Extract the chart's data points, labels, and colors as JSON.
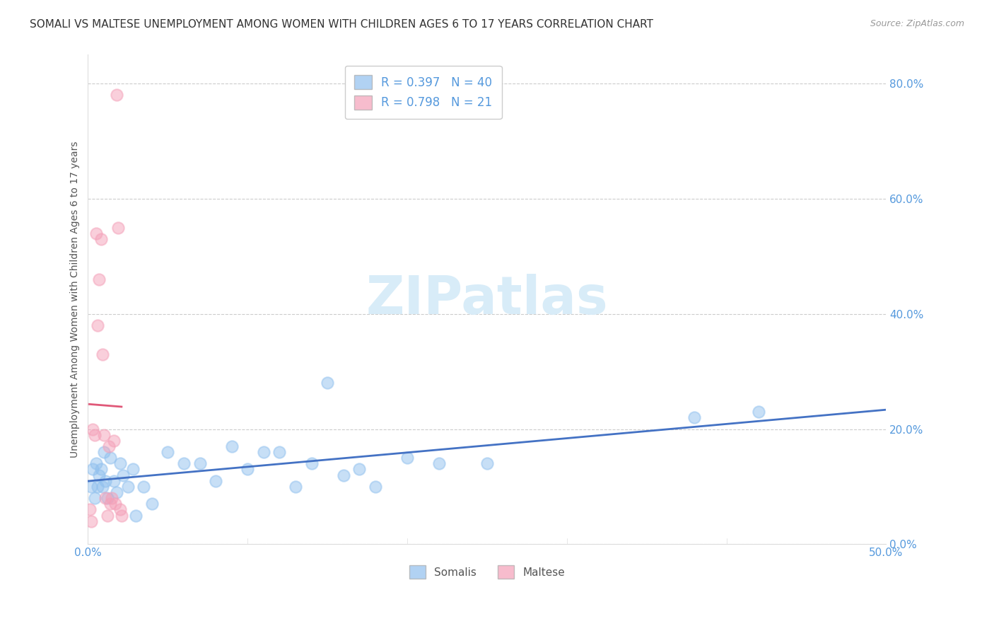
{
  "title": "SOMALI VS MALTESE UNEMPLOYMENT AMONG WOMEN WITH CHILDREN AGES 6 TO 17 YEARS CORRELATION CHART",
  "source": "Source: ZipAtlas.com",
  "ylabel": "Unemployment Among Women with Children Ages 6 to 17 years",
  "xlim": [
    0.0,
    0.5
  ],
  "ylim": [
    0.0,
    0.85
  ],
  "x_ticks": [
    0.0,
    0.1,
    0.2,
    0.3,
    0.4,
    0.5
  ],
  "x_tick_labels": [
    "0.0%",
    "",
    "",
    "",
    "",
    "50.0%"
  ],
  "y_ticks": [
    0.0,
    0.2,
    0.4,
    0.6,
    0.8
  ],
  "y_tick_labels": [
    "0.0%",
    "20.0%",
    "40.0%",
    "60.0%",
    "80.0%"
  ],
  "somali_R": 0.397,
  "somali_N": 40,
  "maltese_R": 0.798,
  "maltese_N": 21,
  "somali_color": "#90C0EE",
  "maltese_color": "#F4A0B8",
  "somali_line_color": "#4472C4",
  "maltese_line_color": "#E05878",
  "watermark_color": "#D8ECF8",
  "background_color": "#FFFFFF",
  "grid_color": "#CCCCCC",
  "somali_x": [
    0.002,
    0.003,
    0.004,
    0.005,
    0.006,
    0.007,
    0.008,
    0.009,
    0.01,
    0.011,
    0.012,
    0.014,
    0.016,
    0.018,
    0.02,
    0.022,
    0.025,
    0.028,
    0.03,
    0.035,
    0.04,
    0.05,
    0.06,
    0.07,
    0.08,
    0.09,
    0.1,
    0.11,
    0.12,
    0.13,
    0.14,
    0.15,
    0.16,
    0.17,
    0.18,
    0.2,
    0.22,
    0.25,
    0.38,
    0.42
  ],
  "somali_y": [
    0.1,
    0.13,
    0.08,
    0.14,
    0.1,
    0.12,
    0.13,
    0.1,
    0.16,
    0.11,
    0.08,
    0.15,
    0.11,
    0.09,
    0.14,
    0.12,
    0.1,
    0.13,
    0.05,
    0.1,
    0.07,
    0.16,
    0.14,
    0.14,
    0.11,
    0.17,
    0.13,
    0.16,
    0.16,
    0.1,
    0.14,
    0.28,
    0.12,
    0.13,
    0.1,
    0.15,
    0.14,
    0.14,
    0.22,
    0.23
  ],
  "maltese_x": [
    0.001,
    0.002,
    0.003,
    0.004,
    0.005,
    0.006,
    0.007,
    0.008,
    0.009,
    0.01,
    0.011,
    0.012,
    0.013,
    0.014,
    0.015,
    0.016,
    0.017,
    0.018,
    0.019,
    0.02,
    0.021
  ],
  "maltese_y": [
    0.06,
    0.04,
    0.2,
    0.19,
    0.54,
    0.38,
    0.46,
    0.53,
    0.33,
    0.19,
    0.08,
    0.05,
    0.17,
    0.07,
    0.08,
    0.18,
    0.07,
    0.78,
    0.55,
    0.06,
    0.05
  ],
  "marker_size": 140,
  "marker_alpha": 0.5,
  "line_width": 2.0
}
